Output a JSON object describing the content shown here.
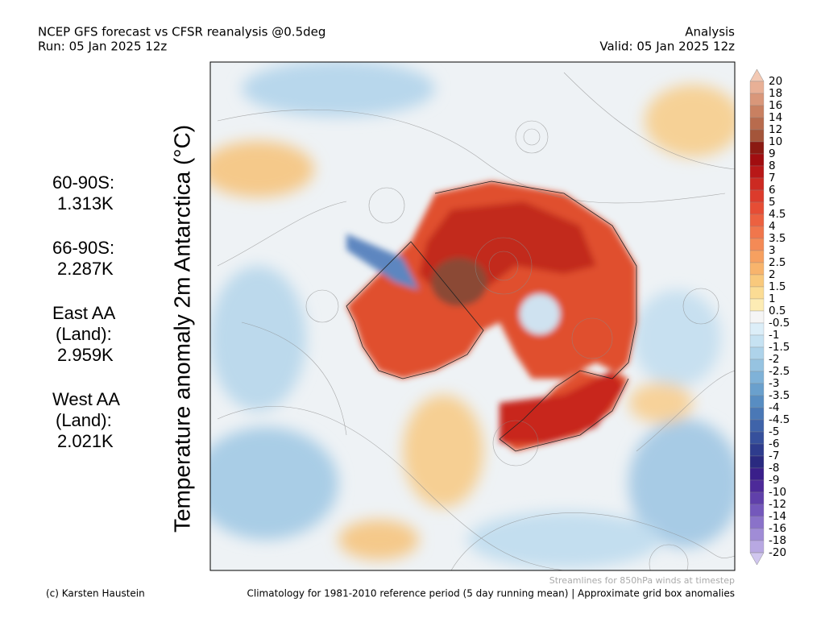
{
  "header": {
    "title": "NCEP GFS forecast vs CFSR reanalysis @0.5deg",
    "run": "Run: 05 Jan 2025 12z",
    "mode": "Analysis",
    "valid": "Valid: 05 Jan 2025 12z"
  },
  "map_title": "Temperature anomaly 2m Antarctica (°C)",
  "stats": [
    {
      "label": [
        "60-90S:"
      ],
      "value": "1.313K"
    },
    {
      "label": [
        "66-90S:"
      ],
      "value": "2.287K"
    },
    {
      "label": [
        "East AA",
        "(Land):"
      ],
      "value": "2.959K"
    },
    {
      "label": [
        "West AA",
        "(Land):"
      ],
      "value": "2.021K"
    }
  ],
  "colorbar": {
    "labels": [
      20,
      18,
      16,
      14,
      12,
      10,
      9,
      8,
      7,
      6,
      5,
      4.5,
      4,
      3.5,
      3,
      2.5,
      2,
      1.5,
      1,
      0.5,
      -0.5,
      -1,
      -1.5,
      -2,
      -2.5,
      -3,
      -3.5,
      -4,
      -4.5,
      -5,
      -6,
      -7,
      -8,
      -9,
      -10,
      -12,
      -14,
      -16,
      -18,
      -20
    ],
    "colors": [
      "#f3c9b4",
      "#e8b096",
      "#d9977a",
      "#c98061",
      "#b86b4d",
      "#a4553a",
      "#8b1a12",
      "#a10d10",
      "#b81818",
      "#cc2a22",
      "#dc3b2c",
      "#e64d35",
      "#ec6140",
      "#f0764c",
      "#f48a56",
      "#f6a060",
      "#f8b46c",
      "#f9c97c",
      "#fbdc94",
      "#fdecb4",
      "#f5f5f5",
      "#dceef8",
      "#c6e2f2",
      "#aed3ea",
      "#96c3e1",
      "#7fb2d8",
      "#6aa0cd",
      "#588dc2",
      "#4a78b6",
      "#3f63a9",
      "#36509c",
      "#2e3c8d",
      "#2a2a80",
      "#3a1f8a",
      "#4d2a99",
      "#6040aa",
      "#7458bb",
      "#8a72c9",
      "#a08cd6",
      "#b8a8e2",
      "#d0c6ee"
    ]
  },
  "footer": {
    "credit": "(c) Karsten Haustein",
    "streamlines": "Streamlines for 850hPa winds at timestep",
    "climatology": "Climatology for 1981-2010 reference period (5 day running mean) | Approximate grid box anomalies"
  }
}
